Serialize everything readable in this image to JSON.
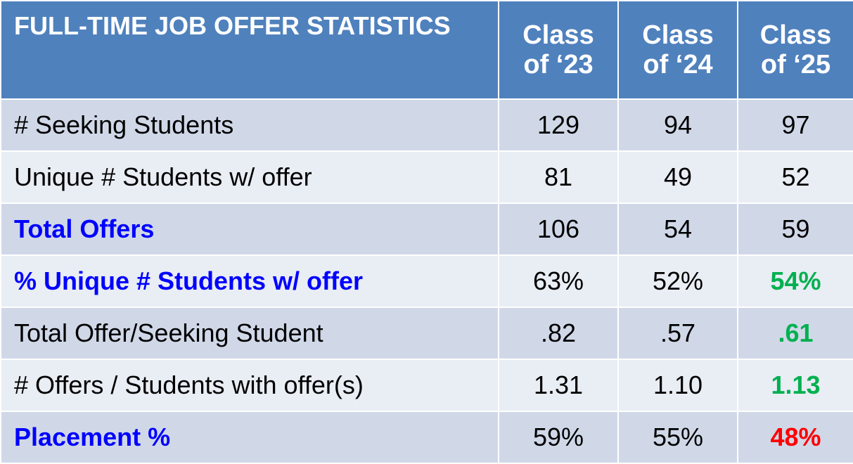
{
  "chart_data": {
    "type": "table",
    "title": "FULL-TIME JOB OFFER STATISTICS",
    "columns": [
      {
        "line1": "Class",
        "line2": "of ‘23"
      },
      {
        "line1": "Class",
        "line2": "of ‘24"
      },
      {
        "line1": "Class",
        "line2": "of ‘25"
      }
    ],
    "rows": [
      {
        "label": "# Seeking Students",
        "label_color": "#000000",
        "label_bold": false,
        "values": [
          "129",
          "94",
          "97"
        ],
        "value_colors": [
          "#000000",
          "#000000",
          "#000000"
        ],
        "value_bold": [
          false,
          false,
          false
        ]
      },
      {
        "label": "Unique # Students w/ offer",
        "label_color": "#000000",
        "label_bold": false,
        "values": [
          "81",
          "49",
          "52"
        ],
        "value_colors": [
          "#000000",
          "#000000",
          "#000000"
        ],
        "value_bold": [
          false,
          false,
          false
        ]
      },
      {
        "label": "Total Offers",
        "label_color": "#0000ff",
        "label_bold": true,
        "values": [
          "106",
          "54",
          "59"
        ],
        "value_colors": [
          "#000000",
          "#000000",
          "#000000"
        ],
        "value_bold": [
          false,
          false,
          false
        ]
      },
      {
        "label": "% Unique # Students w/ offer",
        "label_color": "#0000ff",
        "label_bold": true,
        "values": [
          "63%",
          "52%",
          "54%"
        ],
        "value_colors": [
          "#000000",
          "#000000",
          "#00b050"
        ],
        "value_bold": [
          false,
          false,
          true
        ]
      },
      {
        "label": "Total Offer/Seeking Student",
        "label_color": "#000000",
        "label_bold": false,
        "values": [
          ".82",
          ".57",
          ".61"
        ],
        "value_colors": [
          "#000000",
          "#000000",
          "#00b050"
        ],
        "value_bold": [
          false,
          false,
          true
        ]
      },
      {
        "label": "# Offers / Students with offer(s)",
        "label_color": "#000000",
        "label_bold": false,
        "values": [
          "1.31",
          "1.10",
          "1.13"
        ],
        "value_colors": [
          "#000000",
          "#000000",
          "#00b050"
        ],
        "value_bold": [
          false,
          false,
          true
        ]
      },
      {
        "label": "Placement %",
        "label_color": "#0000ff",
        "label_bold": true,
        "values": [
          "59%",
          "55%",
          "48%"
        ],
        "value_colors": [
          "#000000",
          "#000000",
          "#ff0000"
        ],
        "value_bold": [
          false,
          false,
          true
        ]
      }
    ]
  }
}
